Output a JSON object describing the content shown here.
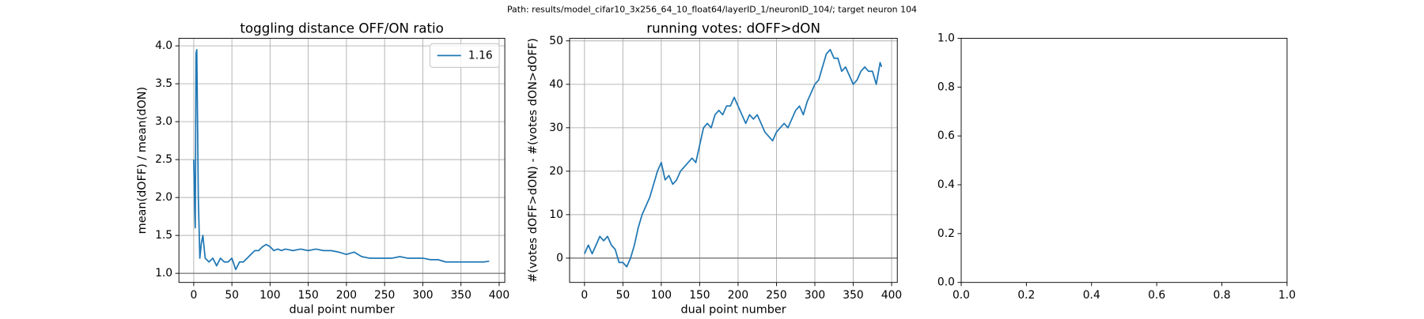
{
  "suptitle": "Path: results/model_cifar10_3x256_64_10_float64/layerID_1/neuronID_104/; target neuron 104",
  "chart_data": [
    {
      "type": "line",
      "title": "toggling distance OFF/ON ratio",
      "xlabel": "dual point number",
      "ylabel": "mean(dOFF) / mean(dON)",
      "x": [
        0,
        1,
        2,
        3,
        4,
        5,
        6,
        8,
        10,
        12,
        15,
        20,
        25,
        30,
        35,
        40,
        45,
        50,
        55,
        60,
        65,
        70,
        75,
        80,
        85,
        90,
        95,
        100,
        105,
        110,
        115,
        120,
        130,
        140,
        150,
        160,
        170,
        180,
        190,
        200,
        210,
        220,
        230,
        240,
        250,
        260,
        270,
        280,
        290,
        300,
        310,
        320,
        330,
        340,
        350,
        360,
        370,
        380,
        387
      ],
      "series": [
        {
          "name": "1.16",
          "color": "#1f77b4",
          "values": [
            2.5,
            2.0,
            1.6,
            3.9,
            3.95,
            3.0,
            2.0,
            1.2,
            1.4,
            1.5,
            1.2,
            1.15,
            1.2,
            1.1,
            1.2,
            1.15,
            1.15,
            1.2,
            1.05,
            1.15,
            1.15,
            1.2,
            1.25,
            1.3,
            1.3,
            1.35,
            1.38,
            1.35,
            1.3,
            1.32,
            1.3,
            1.32,
            1.3,
            1.32,
            1.3,
            1.32,
            1.3,
            1.3,
            1.28,
            1.25,
            1.28,
            1.22,
            1.2,
            1.2,
            1.2,
            1.2,
            1.22,
            1.2,
            1.2,
            1.2,
            1.18,
            1.18,
            1.15,
            1.15,
            1.15,
            1.15,
            1.15,
            1.15,
            1.16
          ]
        }
      ],
      "hline": 1,
      "hline_color": "#808080",
      "xlim": [
        -19.4,
        407.4
      ],
      "ylim": [
        0.88,
        4.1
      ],
      "xticks": [
        0,
        50,
        100,
        150,
        200,
        250,
        300,
        350,
        400
      ],
      "yticks": [
        {
          "value": 1,
          "label": "1.0"
        },
        {
          "value": 1.5,
          "label": "1.5"
        },
        {
          "value": 2,
          "label": "2.0"
        },
        {
          "value": 2.5,
          "label": "2.5"
        },
        {
          "value": 3,
          "label": "3.0"
        },
        {
          "value": 3.5,
          "label": "3.5"
        },
        {
          "value": 4,
          "label": "4.0"
        }
      ],
      "grid": true,
      "legend": "upper right"
    },
    {
      "type": "line",
      "title": "running votes: dOFF>dON",
      "xlabel": "dual point number",
      "ylabel": "#(votes dOFF>dON) - #(votes dON>dOFF)",
      "x": [
        0,
        5,
        10,
        15,
        20,
        25,
        30,
        35,
        40,
        45,
        50,
        55,
        60,
        65,
        70,
        75,
        80,
        85,
        90,
        95,
        100,
        105,
        110,
        115,
        120,
        125,
        130,
        135,
        140,
        145,
        150,
        155,
        160,
        165,
        170,
        175,
        180,
        185,
        190,
        195,
        200,
        205,
        210,
        215,
        220,
        225,
        230,
        235,
        240,
        245,
        250,
        255,
        260,
        265,
        270,
        275,
        280,
        285,
        290,
        295,
        300,
        305,
        310,
        315,
        320,
        325,
        330,
        335,
        340,
        345,
        350,
        355,
        360,
        365,
        370,
        375,
        380,
        385,
        387
      ],
      "series": [
        {
          "color": "#1f77b4",
          "values": [
            1,
            3,
            1,
            3,
            5,
            4,
            5,
            3,
            2,
            -1,
            -1,
            -2,
            0,
            3,
            7,
            10,
            12,
            14,
            17,
            20,
            22,
            18,
            19,
            17,
            18,
            20,
            21,
            22,
            23,
            22,
            26,
            30,
            31,
            30,
            33,
            34,
            33,
            35,
            35,
            37,
            35,
            33,
            31,
            33,
            32,
            33,
            31,
            29,
            28,
            27,
            29,
            30,
            31,
            30,
            32,
            34,
            35,
            33,
            36,
            38,
            40,
            41,
            44,
            47,
            48,
            46,
            46,
            43,
            44,
            42,
            40,
            41,
            43,
            44,
            43,
            43,
            40,
            45,
            44
          ]
        }
      ],
      "hline": 0,
      "hline_color": "#808080",
      "xlim": [
        -19.4,
        407.4
      ],
      "ylim": [
        -5.6,
        50.6
      ],
      "xticks": [
        0,
        50,
        100,
        150,
        200,
        250,
        300,
        350,
        400
      ],
      "yticks": [
        0,
        10,
        20,
        30,
        40,
        50
      ],
      "grid": true
    },
    {
      "type": "axes",
      "xlim": [
        0,
        1
      ],
      "ylim": [
        0,
        1
      ],
      "xticks": [
        {
          "value": 0,
          "label": "0.0"
        },
        {
          "value": 0.2,
          "label": "0.2"
        },
        {
          "value": 0.4,
          "label": "0.4"
        },
        {
          "value": 0.6,
          "label": "0.6"
        },
        {
          "value": 0.8,
          "label": "0.8"
        },
        {
          "value": 1,
          "label": "1.0"
        }
      ],
      "yticks": [
        {
          "value": 0,
          "label": "0.0"
        },
        {
          "value": 0.2,
          "label": "0.2"
        },
        {
          "value": 0.4,
          "label": "0.4"
        },
        {
          "value": 0.6,
          "label": "0.6"
        },
        {
          "value": 0.8,
          "label": "0.8"
        },
        {
          "value": 1,
          "label": "1.0"
        }
      ],
      "grid": false
    }
  ]
}
